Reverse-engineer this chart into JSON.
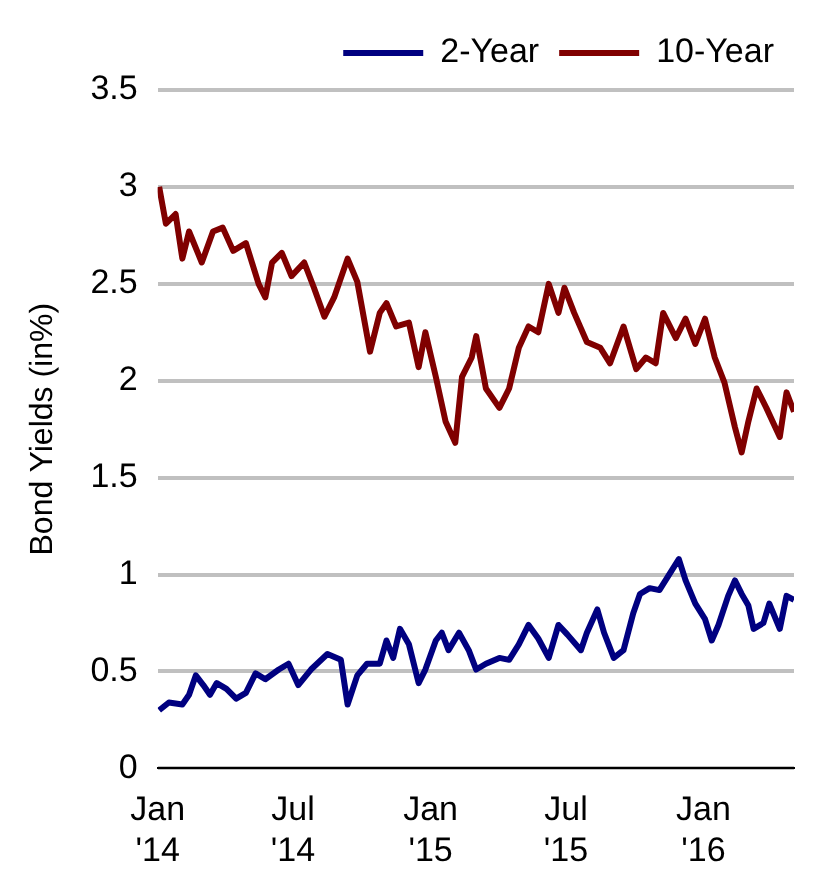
{
  "chart_data": {
    "type": "line",
    "ylabel": "Bond Yields (in%)",
    "legend": "top right",
    "grid": "y",
    "marker": "none",
    "line_style": "solid",
    "xlim": [
      "2014-01-01",
      "2016-05-01"
    ],
    "xticks": [
      {
        "value": "2014-01",
        "label": "Jan '14"
      },
      {
        "value": "2014-07",
        "label": "Jul '14"
      },
      {
        "value": "2015-01",
        "label": "Jan '15"
      },
      {
        "value": "2015-07",
        "label": "Jul '15"
      },
      {
        "value": "2016-01",
        "label": "Jan '16"
      }
    ],
    "ylim": [
      0,
      3.5
    ],
    "yticks": [
      0,
      0.5,
      1,
      1.5,
      2,
      2.5,
      3,
      3.5
    ],
    "series": [
      {
        "name": "2-Year",
        "color": "#000080",
        "x": [
          "2014-01-03",
          "2014-01-16",
          "2014-02-03",
          "2014-02-12",
          "2014-02-21",
          "2014-03-03",
          "2014-03-12",
          "2014-03-21",
          "2014-04-03",
          "2014-04-16",
          "2014-04-29",
          "2014-05-12",
          "2014-05-25",
          "2014-06-12",
          "2014-06-25",
          "2014-07-08",
          "2014-07-25",
          "2014-08-16",
          "2014-09-03",
          "2014-09-12",
          "2014-09-25",
          "2014-10-08",
          "2014-10-25",
          "2014-11-03",
          "2014-11-12",
          "2014-11-21",
          "2014-12-03",
          "2014-12-16",
          "2014-12-25",
          "2015-01-08",
          "2015-01-16",
          "2015-01-25",
          "2015-02-08",
          "2015-02-21",
          "2015-03-03",
          "2015-03-16",
          "2015-04-03",
          "2015-04-16",
          "2015-04-29",
          "2015-05-12",
          "2015-05-25",
          "2015-06-08",
          "2015-06-21",
          "2015-07-03",
          "2015-07-21",
          "2015-07-29",
          "2015-08-12",
          "2015-08-21",
          "2015-09-03",
          "2015-09-16",
          "2015-09-29",
          "2015-10-08",
          "2015-10-21",
          "2015-11-03",
          "2015-11-16",
          "2015-11-29",
          "2015-12-08",
          "2015-12-21",
          "2016-01-03",
          "2016-01-12",
          "2016-01-21",
          "2016-02-03",
          "2016-02-12",
          "2016-02-21",
          "2016-03-01",
          "2016-03-08",
          "2016-03-21",
          "2016-03-29",
          "2016-04-12",
          "2016-04-21",
          "2016-05-01"
        ],
        "values": [
          0.3,
          0.34,
          0.33,
          0.38,
          0.48,
          0.43,
          0.38,
          0.44,
          0.41,
          0.36,
          0.39,
          0.49,
          0.46,
          0.51,
          0.54,
          0.43,
          0.51,
          0.59,
          0.56,
          0.33,
          0.48,
          0.54,
          0.54,
          0.66,
          0.57,
          0.72,
          0.64,
          0.44,
          0.51,
          0.66,
          0.7,
          0.61,
          0.7,
          0.61,
          0.51,
          0.54,
          0.57,
          0.56,
          0.64,
          0.74,
          0.67,
          0.57,
          0.74,
          0.69,
          0.61,
          0.7,
          0.82,
          0.7,
          0.57,
          0.61,
          0.8,
          0.9,
          0.93,
          0.92,
          1.0,
          1.08,
          0.97,
          0.85,
          0.77,
          0.66,
          0.74,
          0.89,
          0.97,
          0.9,
          0.84,
          0.72,
          0.75,
          0.85,
          0.72,
          0.89,
          0.87
        ]
      },
      {
        "name": "10-Year",
        "color": "#800000",
        "x": [
          "2014-01-03",
          "2014-01-12",
          "2014-01-25",
          "2014-02-03",
          "2014-02-12",
          "2014-03-01",
          "2014-03-16",
          "2014-03-29",
          "2014-04-12",
          "2014-04-29",
          "2014-05-16",
          "2014-05-25",
          "2014-06-03",
          "2014-06-16",
          "2014-06-29",
          "2014-07-16",
          "2014-07-29",
          "2014-08-12",
          "2014-08-25",
          "2014-09-12",
          "2014-09-25",
          "2014-10-12",
          "2014-10-25",
          "2014-11-03",
          "2014-11-16",
          "2014-12-03",
          "2014-12-16",
          "2014-12-25",
          "2015-01-08",
          "2015-01-21",
          "2015-02-03",
          "2015-02-12",
          "2015-02-25",
          "2015-03-03",
          "2015-03-16",
          "2015-04-03",
          "2015-04-16",
          "2015-04-29",
          "2015-05-12",
          "2015-05-25",
          "2015-06-08",
          "2015-06-21",
          "2015-06-29",
          "2015-07-12",
          "2015-07-29",
          "2015-08-16",
          "2015-08-29",
          "2015-09-16",
          "2015-10-03",
          "2015-10-16",
          "2015-10-29",
          "2015-11-08",
          "2015-11-25",
          "2015-12-08",
          "2015-12-21",
          "2016-01-03",
          "2016-01-16",
          "2016-01-29",
          "2016-02-12",
          "2016-02-21",
          "2016-03-01",
          "2016-03-12",
          "2016-03-25",
          "2016-04-12",
          "2016-04-21",
          "2016-05-01"
        ],
        "values": [
          3.0,
          2.81,
          2.86,
          2.63,
          2.77,
          2.61,
          2.77,
          2.79,
          2.67,
          2.71,
          2.5,
          2.43,
          2.61,
          2.66,
          2.54,
          2.61,
          2.48,
          2.33,
          2.43,
          2.63,
          2.51,
          2.15,
          2.35,
          2.4,
          2.28,
          2.3,
          2.07,
          2.25,
          2.02,
          1.79,
          1.68,
          2.02,
          2.12,
          2.23,
          1.96,
          1.86,
          1.96,
          2.17,
          2.28,
          2.25,
          2.5,
          2.35,
          2.48,
          2.35,
          2.2,
          2.17,
          2.09,
          2.28,
          2.06,
          2.12,
          2.09,
          2.35,
          2.22,
          2.32,
          2.19,
          2.32,
          2.12,
          1.99,
          1.76,
          1.63,
          1.79,
          1.96,
          1.86,
          1.71,
          1.94,
          1.84
        ]
      }
    ]
  }
}
